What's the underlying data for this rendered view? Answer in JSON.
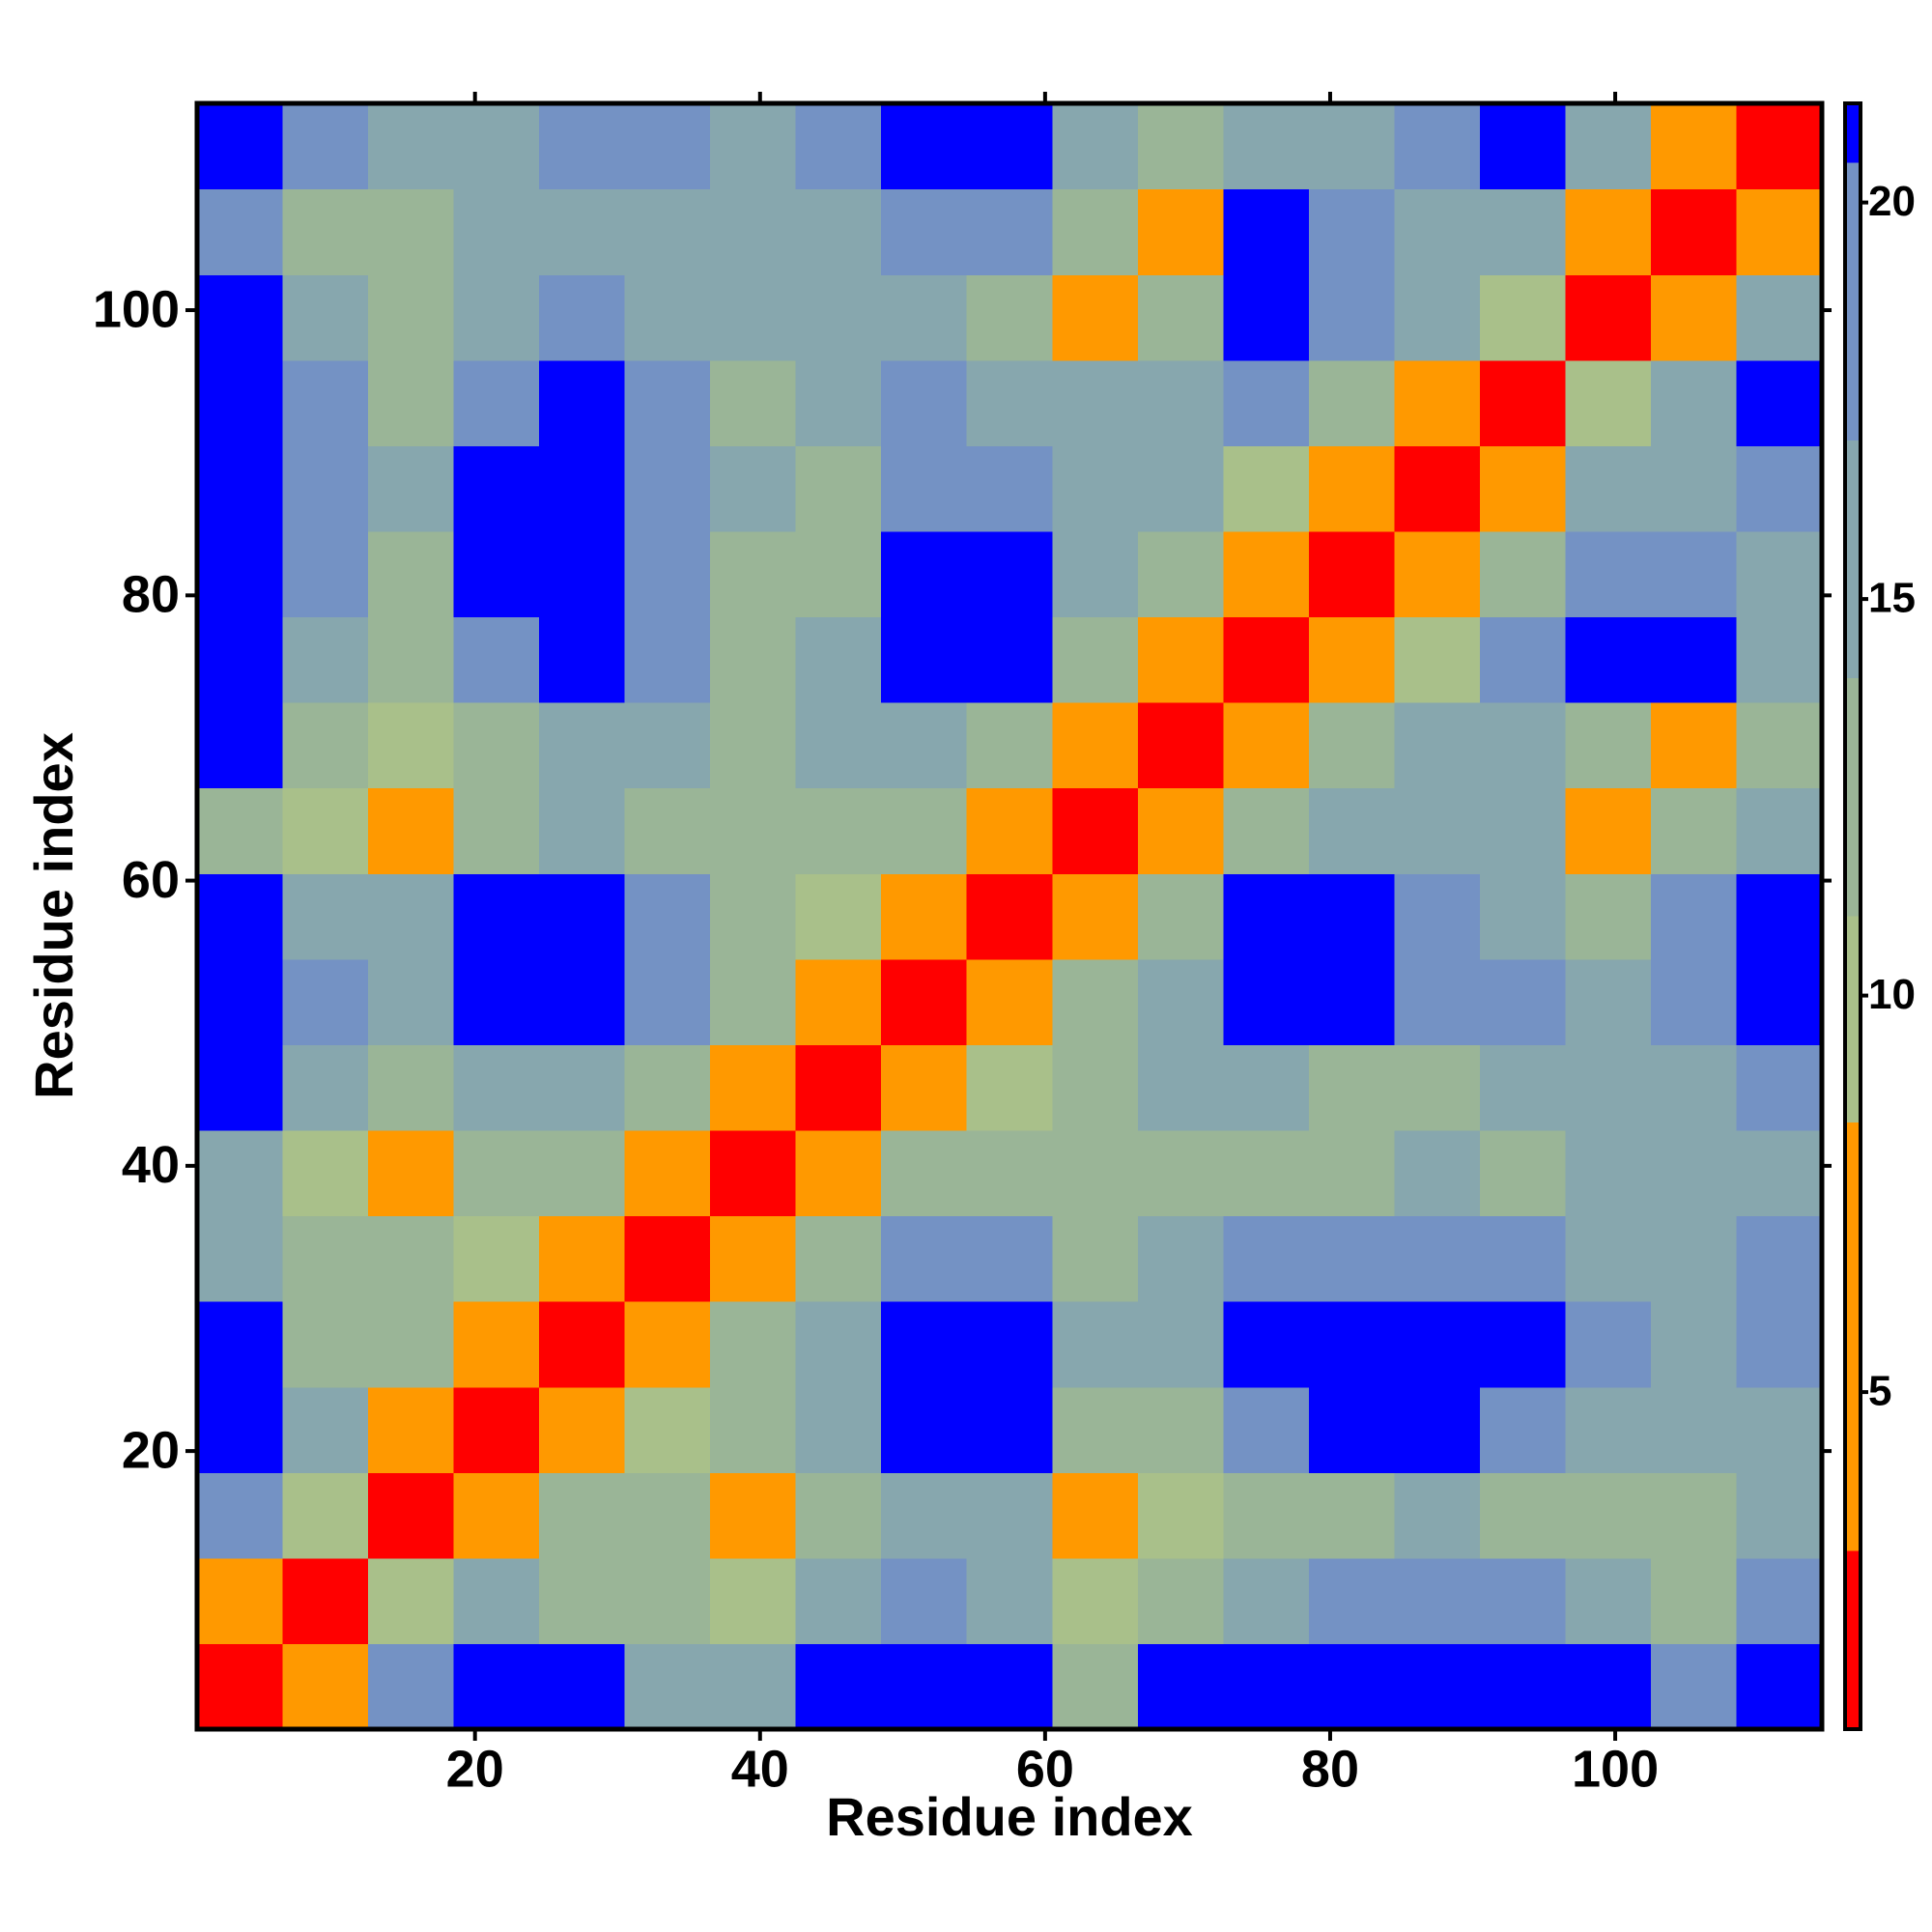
{
  "chart_data": {
    "type": "heatmap",
    "xlabel": "Residue index",
    "ylabel": "Residue index",
    "x_edges": [
      0.5,
      6.5,
      12.5,
      18.5,
      24.5,
      30.5,
      36.5,
      42.5,
      48.5,
      54.5,
      60.5,
      66.5,
      72.5,
      78.5,
      84.5,
      90.5,
      96.5,
      102.5,
      108.5,
      114.5
    ],
    "y_edges": [
      0.5,
      6.5,
      12.5,
      18.5,
      24.5,
      30.5,
      36.5,
      42.5,
      48.5,
      54.5,
      60.5,
      66.5,
      72.5,
      78.5,
      84.5,
      90.5,
      96.5,
      102.5,
      108.5,
      114.5
    ],
    "xlim": [
      0.5,
      114.5
    ],
    "ylim": [
      0.5,
      114.5
    ],
    "xticks": [
      20,
      40,
      60,
      80,
      100
    ],
    "yticks": [
      20,
      40,
      60,
      80,
      100
    ],
    "zlim": [
      0.75,
      21.25
    ],
    "colorbar_ticks": [
      5,
      10,
      15,
      20
    ],
    "colorscale": [
      {
        "from": 0,
        "color": "#ff0000"
      },
      {
        "from": 3,
        "color": "#ff9900"
      },
      {
        "from": 8.4,
        "color": "#a9c08a"
      },
      {
        "from": 11,
        "color": "#9ab597"
      },
      {
        "from": 14,
        "color": "#87a7ae"
      },
      {
        "from": 17,
        "color": "#7492c4"
      },
      {
        "from": 20.5,
        "color": "#0000ff"
      }
    ],
    "z": [
      [
        2,
        7,
        20,
        21,
        21,
        15,
        14,
        21,
        21,
        21,
        13,
        21,
        21,
        21,
        21,
        21,
        21,
        20,
        21
      ],
      [
        7,
        2,
        10,
        16,
        13,
        11,
        9,
        16,
        18,
        16,
        9,
        13,
        16,
        17,
        18,
        19,
        15,
        13,
        20
      ],
      [
        20,
        10,
        2,
        8,
        11,
        11,
        6,
        13,
        14,
        14,
        7,
        9,
        11,
        13,
        14,
        13,
        13,
        12,
        15
      ],
      [
        21,
        16,
        8,
        2,
        6,
        9,
        11,
        14,
        21,
        21,
        13,
        12,
        19,
        21,
        21,
        20,
        14,
        14,
        16
      ],
      [
        21,
        13,
        11,
        6,
        2,
        6,
        12,
        16,
        21,
        21,
        14,
        14,
        21,
        21,
        21,
        21,
        18,
        16,
        17
      ],
      [
        15,
        11,
        11,
        9,
        6,
        2,
        6,
        11,
        20,
        18,
        12,
        14,
        20,
        19,
        18,
        18,
        14,
        15,
        18
      ],
      [
        14,
        9,
        6,
        11,
        12,
        6,
        2,
        5,
        11,
        12,
        13,
        12,
        13,
        12,
        14,
        13,
        14,
        15,
        15
      ],
      [
        21,
        16,
        13,
        14,
        16,
        11,
        5,
        2,
        5,
        10,
        13,
        14,
        14,
        11,
        13,
        14,
        15,
        16,
        18
      ],
      [
        21,
        18,
        14,
        21,
        21,
        20,
        11,
        5,
        2,
        6,
        11,
        15,
        21,
        21,
        19,
        18,
        16,
        20,
        21
      ],
      [
        21,
        16,
        14,
        21,
        21,
        18,
        12,
        10,
        6,
        2,
        7,
        11,
        21,
        21,
        17,
        14,
        13,
        18,
        21
      ],
      [
        13,
        9,
        7,
        13,
        14,
        12,
        13,
        13,
        11,
        7,
        2,
        7,
        13,
        16,
        15,
        14,
        8,
        12,
        14
      ],
      [
        21,
        13,
        9,
        12,
        14,
        14,
        12,
        14,
        15,
        11,
        7,
        2,
        5,
        11,
        14,
        16,
        12,
        8,
        11
      ],
      [
        21,
        16,
        11,
        19,
        21,
        20,
        13,
        14,
        21,
        21,
        13,
        5,
        2,
        6,
        10,
        17,
        21,
        21,
        14
      ],
      [
        21,
        17,
        13,
        21,
        21,
        19,
        12,
        11,
        21,
        21,
        16,
        11,
        6,
        2,
        5,
        11,
        20,
        18,
        16
      ],
      [
        21,
        18,
        14,
        21,
        21,
        18,
        14,
        13,
        19,
        17,
        15,
        14,
        10,
        5,
        2,
        6,
        14,
        14,
        18
      ],
      [
        21,
        19,
        13,
        20,
        21,
        18,
        13,
        14,
        18,
        14,
        14,
        16,
        17,
        11,
        6,
        2,
        9,
        14,
        21
      ],
      [
        21,
        15,
        13,
        14,
        18,
        14,
        14,
        15,
        16,
        13,
        8,
        12,
        21,
        20,
        14,
        9,
        2,
        8,
        15
      ],
      [
        20,
        13,
        12,
        14,
        16,
        15,
        15,
        16,
        20,
        18,
        12,
        8,
        21,
        18,
        14,
        14,
        8,
        2,
        6
      ],
      [
        21,
        20,
        15,
        16,
        17,
        18,
        15,
        18,
        21,
        21,
        14,
        11,
        14,
        16,
        18,
        21,
        15,
        6,
        2
      ]
    ]
  }
}
